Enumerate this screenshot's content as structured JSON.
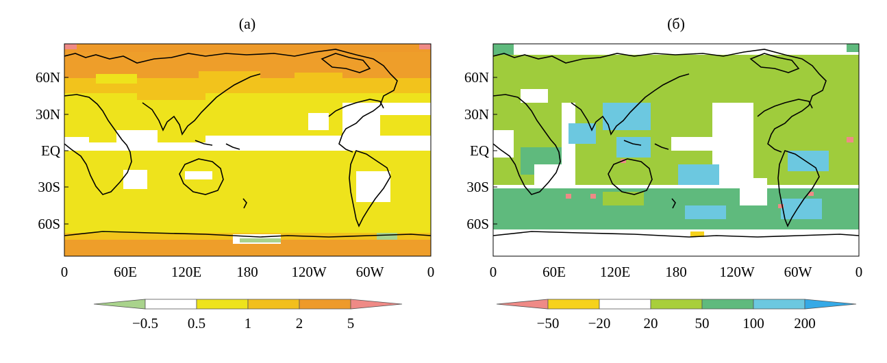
{
  "panels": [
    {
      "id": "a",
      "title": "(a)",
      "lat_ticks": [
        "60N",
        "30N",
        "EQ",
        "30S",
        "60S"
      ],
      "lon_ticks": [
        "0",
        "60E",
        "120E",
        "180",
        "120W",
        "60W",
        "0"
      ],
      "colorbar": {
        "labels": [
          "−0.5",
          "0.5",
          "1",
          "2",
          "5"
        ],
        "colors": [
          "#a9d38c",
          "#ffffff",
          "#eee31c",
          "#f2bf1c",
          "#ee9a2a",
          "#ef8a86"
        ]
      },
      "fill_colors": {
        "base": "#eee31c",
        "moderate": "#f2c31c",
        "high": "#ee9e2a",
        "extreme": "#ef8a86",
        "missing": "#ffffff",
        "low": "#a9d38c"
      }
    },
    {
      "id": "b",
      "title": "(б)",
      "lat_ticks": [
        "60N",
        "30N",
        "EQ",
        "30S",
        "60S"
      ],
      "lon_ticks": [
        "0",
        "60E",
        "120E",
        "180",
        "120W",
        "60W",
        "0"
      ],
      "colorbar": {
        "labels": [
          "−50",
          "−20",
          "20",
          "50",
          "100",
          "200"
        ],
        "colors": [
          "#ef8a86",
          "#f6d21c",
          "#ffffff",
          "#a8cf3a",
          "#5fba7d",
          "#6cc8e0",
          "#35a9e6"
        ]
      },
      "fill_colors": {
        "base": "#9fcc3c",
        "mid": "#5fba7d",
        "high": "#6cc8e0",
        "missing": "#ffffff",
        "negative": "#ef8a86",
        "weak_negative": "#f6d21c"
      }
    }
  ]
}
